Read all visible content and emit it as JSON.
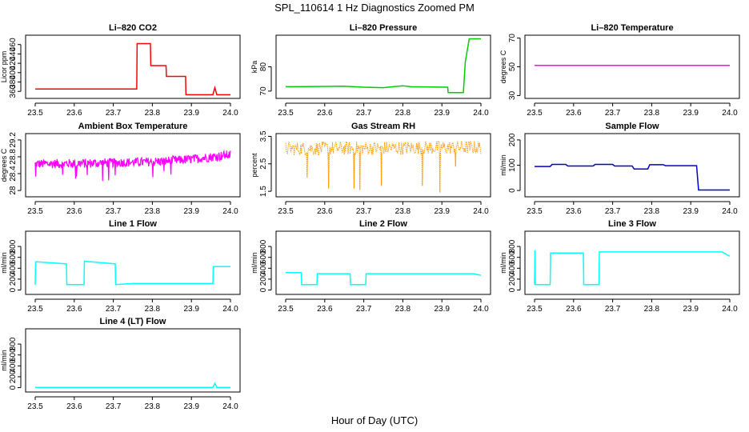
{
  "page": {
    "title": "SPL_110614  1 Hz Diagnostics Zoomed PM",
    "xlabel": "Hour of Day (UTC)"
  },
  "chart_data": [
    {
      "type": "line",
      "title": "Li–820 CO2",
      "xlabel": "",
      "ylabel": "Licor ppm",
      "color": "#ff0000",
      "xlim": [
        23.5,
        24.0
      ],
      "ylim": [
        345,
        480
      ],
      "x_ticks": [
        "23.5",
        "23.6",
        "23.7",
        "23.8",
        "23.9",
        "24.0"
      ],
      "y_ticks": [
        360,
        380,
        400,
        420,
        440,
        460
      ],
      "x": [
        23.5,
        23.76,
        23.761,
        23.795,
        23.796,
        23.835,
        23.836,
        23.885,
        23.886,
        23.955,
        23.96,
        23.965,
        24.0
      ],
      "y": [
        365,
        365,
        462,
        462,
        415,
        415,
        392,
        392,
        353,
        353,
        368,
        353,
        353
      ]
    },
    {
      "type": "line",
      "title": "Li–820 Pressure",
      "xlabel": "",
      "ylabel": "kPa",
      "color": "#00cc00",
      "xlim": [
        23.5,
        24.0
      ],
      "ylim": [
        67,
        93
      ],
      "x_ticks": [
        "23.5",
        "23.6",
        "23.7",
        "23.8",
        "23.9",
        "24.0"
      ],
      "y_ticks": [
        70,
        80
      ],
      "x": [
        23.5,
        23.65,
        23.7,
        23.75,
        23.78,
        23.8,
        23.82,
        23.915,
        23.916,
        23.955,
        23.96,
        23.97,
        24.0
      ],
      "y": [
        71.8,
        72.0,
        71.6,
        71.4,
        71.9,
        72.2,
        71.8,
        71.6,
        69.4,
        69.4,
        82,
        91.5,
        91.5
      ]
    },
    {
      "type": "line",
      "title": "Li–820 Temperature",
      "xlabel": "",
      "ylabel": "degrees C",
      "color": "#ff00ff",
      "xlim": [
        23.5,
        24.0
      ],
      "ylim": [
        28,
        72
      ],
      "x_ticks": [
        "23.5",
        "23.6",
        "23.7",
        "23.8",
        "23.9",
        "24.0"
      ],
      "y_ticks": [
        30,
        50,
        70
      ],
      "x": [
        23.5,
        24.0
      ],
      "y": [
        51,
        51
      ]
    },
    {
      "type": "line",
      "title": "Ambient Box Temperature",
      "xlabel": "",
      "ylabel": "degrees C",
      "color": "#ff00ff",
      "xlim": [
        23.5,
        24.0
      ],
      "ylim": [
        27.85,
        29.35
      ],
      "x_ticks": [
        "23.5",
        "23.6",
        "23.7",
        "23.8",
        "23.9",
        "24.0"
      ],
      "y_ticks": [
        28.0,
        28.4,
        28.8,
        29.2
      ],
      "x": [
        23.5,
        23.6,
        23.7,
        23.8,
        23.9,
        24.0
      ],
      "y": [
        28.63,
        28.64,
        28.66,
        28.68,
        28.74,
        28.85
      ],
      "noise": 0.11
    },
    {
      "type": "line",
      "title": "Gas Stream RH",
      "xlabel": "",
      "ylabel": "percent",
      "color": "#ff9900",
      "xlim": [
        23.5,
        24.0
      ],
      "ylim": [
        1.3,
        3.6
      ],
      "x_ticks": [
        "23.5",
        "23.6",
        "23.7",
        "23.8",
        "23.9",
        "24.0"
      ],
      "y_ticks": [
        1.5,
        2.5,
        3.5
      ],
      "x": [
        23.5,
        24.0
      ],
      "y": [
        3.05,
        3.1
      ],
      "dips": [
        [
          23.555,
          2.0
        ],
        [
          23.61,
          1.6
        ],
        [
          23.675,
          1.6
        ],
        [
          23.69,
          1.55
        ],
        [
          23.745,
          1.7
        ],
        [
          23.85,
          1.7
        ],
        [
          23.895,
          1.45
        ],
        [
          23.935,
          2.4
        ]
      ]
    },
    {
      "type": "line",
      "title": "Sample Flow",
      "xlabel": "",
      "ylabel": "ml/min",
      "color": "#0000cc",
      "xlim": [
        23.5,
        24.0
      ],
      "ylim": [
        -25,
        225
      ],
      "x_ticks": [
        "23.5",
        "23.6",
        "23.7",
        "23.8",
        "23.9",
        "24.0"
      ],
      "y_ticks": [
        0,
        100,
        200
      ],
      "x": [
        23.5,
        23.54,
        23.545,
        23.58,
        23.585,
        23.65,
        23.655,
        23.7,
        23.705,
        23.75,
        23.755,
        23.79,
        23.795,
        23.83,
        23.835,
        23.915,
        23.92,
        24.0
      ],
      "y": [
        95,
        95,
        103,
        103,
        97,
        97,
        103,
        103,
        97,
        97,
        85,
        85,
        102,
        102,
        98,
        98,
        2,
        2
      ]
    },
    {
      "type": "line",
      "title": "Line 1 Flow",
      "xlabel": "",
      "ylabel": "ml/min",
      "color": "#00ffff",
      "xlim": [
        23.5,
        24.0
      ],
      "ylim": [
        -80,
        1080
      ],
      "x_ticks": [
        "23.5",
        "23.6",
        "23.7",
        "23.8",
        "23.9",
        "24.0"
      ],
      "y_ticks": [
        0,
        200,
        400,
        600,
        800
      ],
      "x": [
        23.5,
        23.501,
        23.58,
        23.581,
        23.625,
        23.626,
        23.705,
        23.706,
        23.75,
        23.955,
        23.956,
        24.0
      ],
      "y": [
        100,
        520,
        480,
        100,
        100,
        530,
        480,
        100,
        120,
        120,
        430,
        430
      ]
    },
    {
      "type": "line",
      "title": "Line 2 Flow",
      "xlabel": "",
      "ylabel": "ml/min",
      "color": "#00ffff",
      "xlim": [
        23.5,
        24.0
      ],
      "ylim": [
        -80,
        1080
      ],
      "x_ticks": [
        "23.5",
        "23.6",
        "23.7",
        "23.8",
        "23.9",
        "24.0"
      ],
      "y_ticks": [
        0,
        200,
        400,
        600,
        800
      ],
      "x": [
        23.5,
        23.54,
        23.541,
        23.58,
        23.581,
        23.665,
        23.666,
        23.705,
        23.706,
        23.98,
        24.0
      ],
      "y": [
        320,
        320,
        100,
        100,
        300,
        300,
        100,
        100,
        300,
        300,
        270
      ]
    },
    {
      "type": "line",
      "title": "Line 3 Flow",
      "xlabel": "",
      "ylabel": "ml/min",
      "color": "#00ffff",
      "xlim": [
        23.5,
        24.0
      ],
      "ylim": [
        -80,
        1080
      ],
      "x_ticks": [
        "23.5",
        "23.6",
        "23.7",
        "23.8",
        "23.9",
        "24.0"
      ],
      "y_ticks": [
        0,
        200,
        400,
        600,
        800
      ],
      "x": [
        23.5,
        23.501,
        23.502,
        23.54,
        23.541,
        23.625,
        23.626,
        23.665,
        23.666,
        23.98,
        24.0
      ],
      "y": [
        100,
        730,
        100,
        100,
        680,
        680,
        100,
        100,
        700,
        700,
        620
      ]
    },
    {
      "type": "line",
      "title": "Line 4 (LT) Flow",
      "xlabel": "",
      "ylabel": "ml/min",
      "color": "#00ffff",
      "xlim": [
        23.5,
        24.0
      ],
      "ylim": [
        -80,
        1080
      ],
      "x_ticks": [
        "23.5",
        "23.6",
        "23.7",
        "23.8",
        "23.9",
        "24.0"
      ],
      "y_ticks": [
        0,
        200,
        400,
        600,
        800
      ],
      "x": [
        23.5,
        23.955,
        23.96,
        23.965,
        24.0
      ],
      "y": [
        5,
        5,
        80,
        5,
        5
      ]
    }
  ]
}
